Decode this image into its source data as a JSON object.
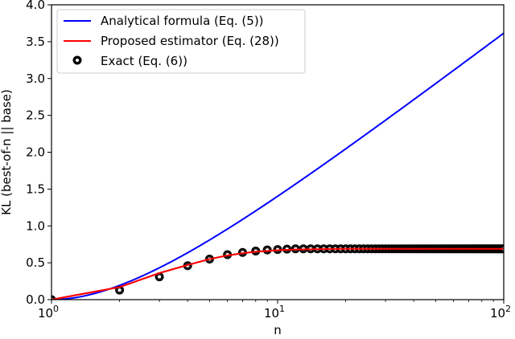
{
  "chart_data": {
    "type": "line",
    "xlabel": "n",
    "ylabel": "KL (best-of-n || base)",
    "xscale": "log",
    "xlim": [
      1,
      100
    ],
    "ylim": [
      0,
      4.0
    ],
    "xticks": [
      {
        "value": 1,
        "base": "10",
        "exp": "0"
      },
      {
        "value": 10,
        "base": "10",
        "exp": "1"
      },
      {
        "value": 100,
        "base": "10",
        "exp": "2"
      }
    ],
    "yticks": [
      "0.0",
      "0.5",
      "1.0",
      "1.5",
      "2.0",
      "2.5",
      "3.0",
      "3.5",
      "4.0"
    ],
    "legend_position": "top-left",
    "series": [
      {
        "name": "Analytical formula (Eq. (5))",
        "kind": "line",
        "color": "#0000ff",
        "formula": "log(n) - (n-1)/n"
      },
      {
        "name": "Proposed estimator (Eq. (28))",
        "kind": "line",
        "color": "#ff0000",
        "x": [
          1,
          2,
          3,
          4,
          5,
          6,
          7,
          8,
          10,
          12,
          15,
          20,
          30,
          50,
          100
        ],
        "y": [
          0.0,
          0.17,
          0.36,
          0.47,
          0.55,
          0.6,
          0.63,
          0.65,
          0.67,
          0.68,
          0.685,
          0.69,
          0.69,
          0.69,
          0.69
        ]
      },
      {
        "name": "Exact (Eq. (6))",
        "kind": "markers",
        "color": "#000000",
        "x": [
          1,
          2,
          3,
          4,
          5,
          6,
          7,
          8,
          9,
          10,
          11,
          12,
          13,
          14,
          15,
          16,
          17,
          18,
          19,
          20,
          21,
          22,
          23,
          24,
          25,
          26,
          27,
          28,
          29,
          30,
          31,
          32,
          33,
          34,
          35,
          36,
          37,
          38,
          39,
          40,
          41,
          42,
          43,
          44,
          45,
          46,
          47,
          48,
          49,
          50,
          51,
          52,
          53,
          54,
          55,
          56,
          57,
          58,
          59,
          60,
          61,
          62,
          63,
          64,
          65,
          66,
          67,
          68,
          69,
          70,
          71,
          72,
          73,
          74,
          75,
          76,
          77,
          78,
          79,
          80,
          81,
          82,
          83,
          84,
          85,
          86,
          87,
          88,
          89,
          90,
          91,
          92,
          93,
          94,
          95,
          96,
          97,
          98,
          99,
          100
        ],
        "y": [
          0.0,
          0.13,
          0.31,
          0.46,
          0.55,
          0.61,
          0.64,
          0.66,
          0.675,
          0.68,
          0.685,
          0.69,
          0.69,
          0.69,
          0.69,
          0.69,
          0.69,
          0.69,
          0.69,
          0.69,
          0.69,
          0.69,
          0.69,
          0.69,
          0.69,
          0.69,
          0.69,
          0.69,
          0.69,
          0.69,
          0.69,
          0.69,
          0.69,
          0.69,
          0.69,
          0.69,
          0.69,
          0.69,
          0.69,
          0.69,
          0.69,
          0.69,
          0.69,
          0.69,
          0.69,
          0.69,
          0.69,
          0.69,
          0.69,
          0.69,
          0.69,
          0.69,
          0.69,
          0.69,
          0.69,
          0.69,
          0.69,
          0.69,
          0.69,
          0.69,
          0.69,
          0.69,
          0.69,
          0.69,
          0.69,
          0.69,
          0.69,
          0.69,
          0.69,
          0.69,
          0.69,
          0.69,
          0.69,
          0.69,
          0.69,
          0.69,
          0.69,
          0.69,
          0.69,
          0.69,
          0.69,
          0.69,
          0.69,
          0.69,
          0.69,
          0.69,
          0.69,
          0.69,
          0.69,
          0.69,
          0.69,
          0.69,
          0.69,
          0.69,
          0.69,
          0.69,
          0.69,
          0.69,
          0.69,
          0.69
        ]
      }
    ]
  }
}
